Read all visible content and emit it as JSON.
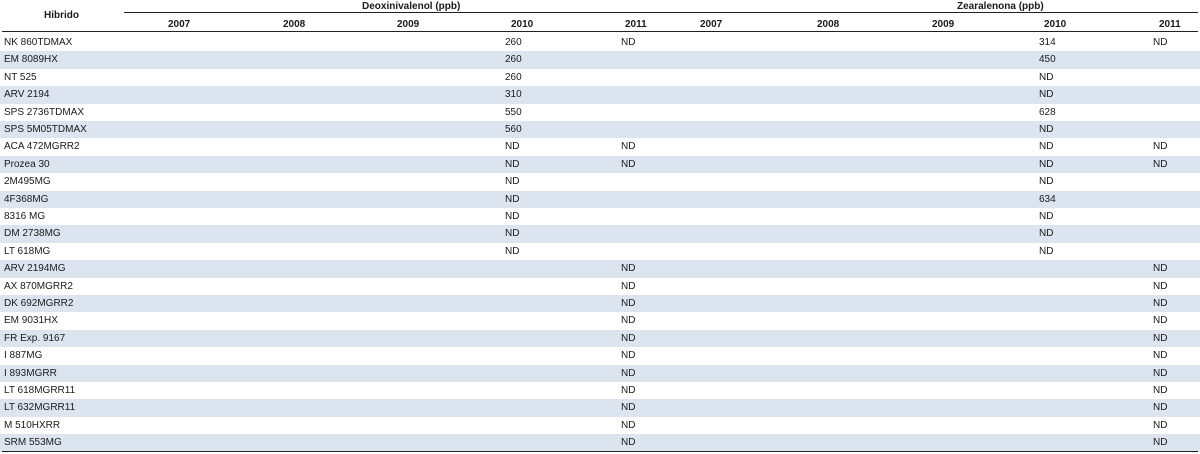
{
  "table": {
    "row_header": "Hibrido",
    "groups": [
      "Deoxinivalenol (ppb)",
      "Zearalenona (ppb)"
    ],
    "years": [
      "2007",
      "2008",
      "2009",
      "2010",
      "2011",
      "2007",
      "2008",
      "2009",
      "2010",
      "2011"
    ],
    "rows": [
      {
        "name": "NK 860TDMAX",
        "don2010": "260",
        "don2011": "ND",
        "zea2010": "314",
        "zea2011": "ND"
      },
      {
        "name": "EM 8089HX",
        "don2010": "260",
        "don2011": "",
        "zea2010": "450",
        "zea2011": ""
      },
      {
        "name": "NT 525",
        "don2010": "260",
        "don2011": "",
        "zea2010": "ND",
        "zea2011": ""
      },
      {
        "name": "ARV 2194",
        "don2010": "310",
        "don2011": "",
        "zea2010": "ND",
        "zea2011": ""
      },
      {
        "name": "SPS 2736TDMAX",
        "don2010": "550",
        "don2011": "",
        "zea2010": "628",
        "zea2011": ""
      },
      {
        "name": "SPS 5M05TDMAX",
        "don2010": "560",
        "don2011": "",
        "zea2010": "ND",
        "zea2011": ""
      },
      {
        "name": "ACA 472MGRR2",
        "don2010": "ND",
        "don2011": "ND",
        "zea2010": "ND",
        "zea2011": "ND"
      },
      {
        "name": "Prozea 30",
        "don2010": "ND",
        "don2011": "ND",
        "zea2010": "ND",
        "zea2011": "ND"
      },
      {
        "name": "2M495MG",
        "don2010": "ND",
        "don2011": "",
        "zea2010": "ND",
        "zea2011": ""
      },
      {
        "name": "4F368MG",
        "don2010": "ND",
        "don2011": "",
        "zea2010": "634",
        "zea2011": ""
      },
      {
        "name": "8316 MG",
        "don2010": "ND",
        "don2011": "",
        "zea2010": "ND",
        "zea2011": ""
      },
      {
        "name": "DM 2738MG",
        "don2010": "ND",
        "don2011": "",
        "zea2010": "ND",
        "zea2011": ""
      },
      {
        "name": "LT 618MG",
        "don2010": "ND",
        "don2011": "",
        "zea2010": "ND",
        "zea2011": ""
      },
      {
        "name": "ARV 2194MG",
        "don2010": "",
        "don2011": "ND",
        "zea2010": "",
        "zea2011": "ND"
      },
      {
        "name": "AX 870MGRR2",
        "don2010": "",
        "don2011": "ND",
        "zea2010": "",
        "zea2011": "ND"
      },
      {
        "name": "DK 692MGRR2",
        "don2010": "",
        "don2011": "ND",
        "zea2010": "",
        "zea2011": "ND"
      },
      {
        "name": "EM 9031HX",
        "don2010": "",
        "don2011": "ND",
        "zea2010": "",
        "zea2011": "ND"
      },
      {
        "name": "FR Exp. 9167",
        "don2010": "",
        "don2011": "ND",
        "zea2010": "",
        "zea2011": "ND"
      },
      {
        "name": "I 887MG",
        "don2010": "",
        "don2011": "ND",
        "zea2010": "",
        "zea2011": "ND"
      },
      {
        "name": "I 893MGRR",
        "don2010": "",
        "don2011": "ND",
        "zea2010": "",
        "zea2011": "ND"
      },
      {
        "name": "LT 618MGRR11",
        "don2010": "",
        "don2011": "ND",
        "zea2010": "",
        "zea2011": "ND"
      },
      {
        "name": "LT 632MGRR11",
        "don2010": "",
        "don2011": "ND",
        "zea2010": "",
        "zea2011": "ND"
      },
      {
        "name": "M 510HXRR",
        "don2010": "",
        "don2011": "ND",
        "zea2010": "",
        "zea2011": "ND"
      },
      {
        "name": "SRM 553MG",
        "don2010": "",
        "don2011": "ND",
        "zea2010": "",
        "zea2011": "ND"
      }
    ]
  },
  "colors": {
    "shade": "#dce4f0",
    "rule": "#222222"
  }
}
